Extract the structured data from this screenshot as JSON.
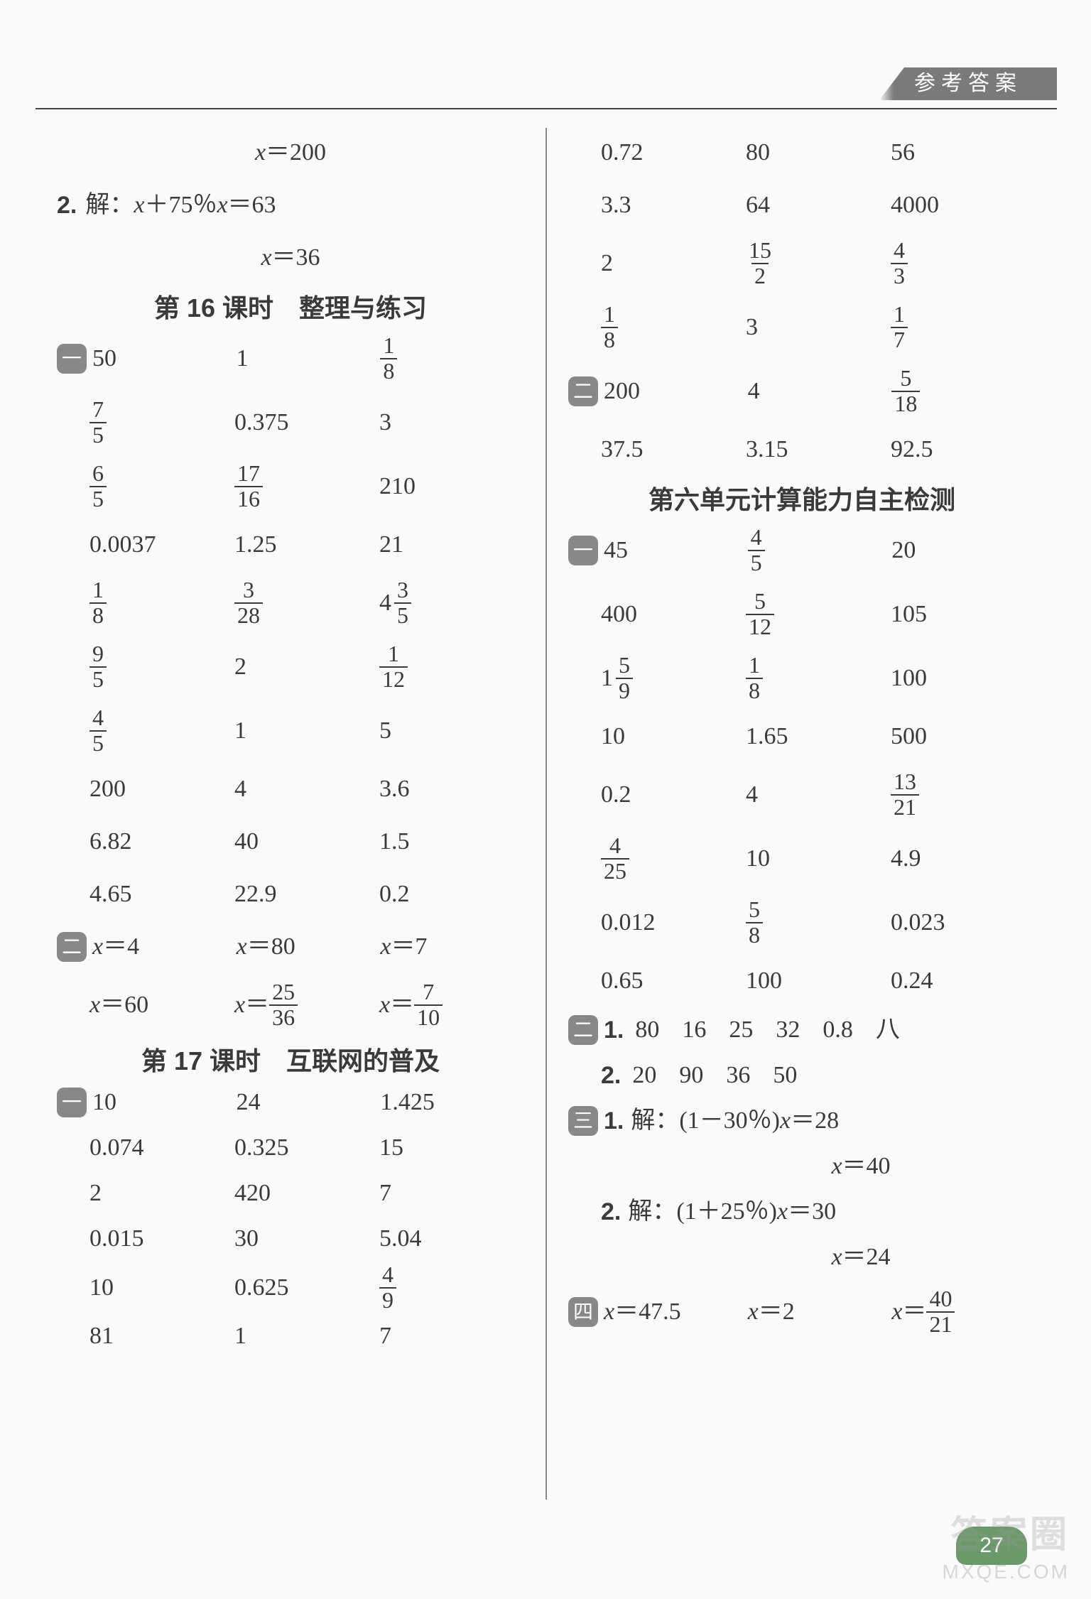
{
  "header_tab": "参考答案",
  "page_number": "27",
  "watermark1": "答案圈",
  "watermark2": "MXQE.COM",
  "left": {
    "line1": "x＝200",
    "line2_label": "2.",
    "line2_text_pre": "解：",
    "line2_eq": "x＋75％x＝63",
    "line3": "x＝36",
    "title1": "第 16 课时　整理与练习",
    "badge1": "一",
    "g1": [
      [
        "50",
        "1",
        {
          "frac": [
            "1",
            "8"
          ]
        }
      ],
      [
        {
          "frac": [
            "7",
            "5"
          ]
        },
        "0.375",
        "3"
      ],
      [
        {
          "frac": [
            "6",
            "5"
          ]
        },
        {
          "frac": [
            "17",
            "16"
          ]
        },
        "210"
      ],
      [
        "0.0037",
        "1.25",
        "21"
      ],
      [
        {
          "frac": [
            "1",
            "8"
          ]
        },
        {
          "frac": [
            "3",
            "28"
          ]
        },
        {
          "mixed": [
            "4",
            "3",
            "5"
          ]
        }
      ],
      [
        {
          "frac": [
            "9",
            "5"
          ]
        },
        "2",
        {
          "frac": [
            "1",
            "12"
          ]
        }
      ],
      [
        {
          "frac": [
            "4",
            "5"
          ]
        },
        "1",
        "5"
      ],
      [
        "200",
        "4",
        "3.6"
      ],
      [
        "6.82",
        "40",
        "1.5"
      ],
      [
        "4.65",
        "22.9",
        "0.2"
      ]
    ],
    "badge2": "二",
    "g2": [
      [
        {
          "eq": "x＝4"
        },
        {
          "eq": "x＝80"
        },
        {
          "eq": "x＝7"
        }
      ],
      [
        {
          "eq": "x＝60"
        },
        {
          "eqfrac": [
            "x＝",
            "25",
            "36"
          ]
        },
        {
          "eqfrac": [
            "x＝",
            "7",
            "10"
          ]
        }
      ]
    ],
    "title2": "第 17 课时　互联网的普及",
    "badge3": "一",
    "g3": [
      [
        "10",
        "24",
        "1.425"
      ],
      [
        "0.074",
        "0.325",
        "15"
      ],
      [
        "2",
        "420",
        "7"
      ],
      [
        "0.015",
        "30",
        "5.04"
      ],
      [
        "10",
        "0.625",
        {
          "frac": [
            "4",
            "9"
          ]
        }
      ],
      [
        "81",
        "1",
        "7"
      ]
    ]
  },
  "right": {
    "g0": [
      [
        "0.72",
        "80",
        "56"
      ],
      [
        "3.3",
        "64",
        "4000"
      ],
      [
        "2",
        {
          "frac": [
            "15",
            "2"
          ]
        },
        {
          "frac": [
            "4",
            "3"
          ]
        }
      ],
      [
        {
          "frac": [
            "1",
            "8"
          ]
        },
        "3",
        {
          "frac": [
            "1",
            "7"
          ]
        }
      ]
    ],
    "badge1": "二",
    "g1": [
      [
        "200",
        "4",
        {
          "frac": [
            "5",
            "18"
          ]
        }
      ],
      [
        "37.5",
        "3.15",
        "92.5"
      ]
    ],
    "title1": "第六单元计算能力自主检测",
    "badge2": "一",
    "g2": [
      [
        "45",
        {
          "frac": [
            "4",
            "5"
          ]
        },
        "20"
      ],
      [
        "400",
        {
          "frac": [
            "5",
            "12"
          ]
        },
        "105"
      ],
      [
        {
          "mixed": [
            "1",
            "5",
            "9"
          ]
        },
        {
          "frac": [
            "1",
            "8"
          ]
        },
        "100"
      ],
      [
        "10",
        "1.65",
        "500"
      ],
      [
        "0.2",
        "4",
        {
          "frac": [
            "13",
            "21"
          ]
        }
      ],
      [
        {
          "frac": [
            "4",
            "25"
          ]
        },
        "10",
        "4.9"
      ],
      [
        "0.012",
        {
          "frac": [
            "5",
            "8"
          ]
        },
        "0.023"
      ],
      [
        "0.65",
        "100",
        "0.24"
      ]
    ],
    "badge3": "二",
    "seq1_label": "1.",
    "seq1": [
      "80",
      "16",
      "25",
      "32",
      "0.8",
      "八"
    ],
    "seq2_label": "2.",
    "seq2": [
      "20",
      "90",
      "36",
      "50"
    ],
    "badge4": "三",
    "p1_label": "1.",
    "p1_pre": "解：",
    "p1_eq": "(1－30％)x＝28",
    "p1_ans": "x＝40",
    "p2_label": "2.",
    "p2_pre": "解：",
    "p2_eq": "(1＋25％)x＝30",
    "p2_ans": "x＝24",
    "badge5": "四",
    "g5": [
      {
        "eq": "x＝47.5"
      },
      {
        "eq": "x＝2"
      },
      {
        "eqfrac": [
          "x＝",
          "40",
          "21"
        ]
      }
    ]
  }
}
